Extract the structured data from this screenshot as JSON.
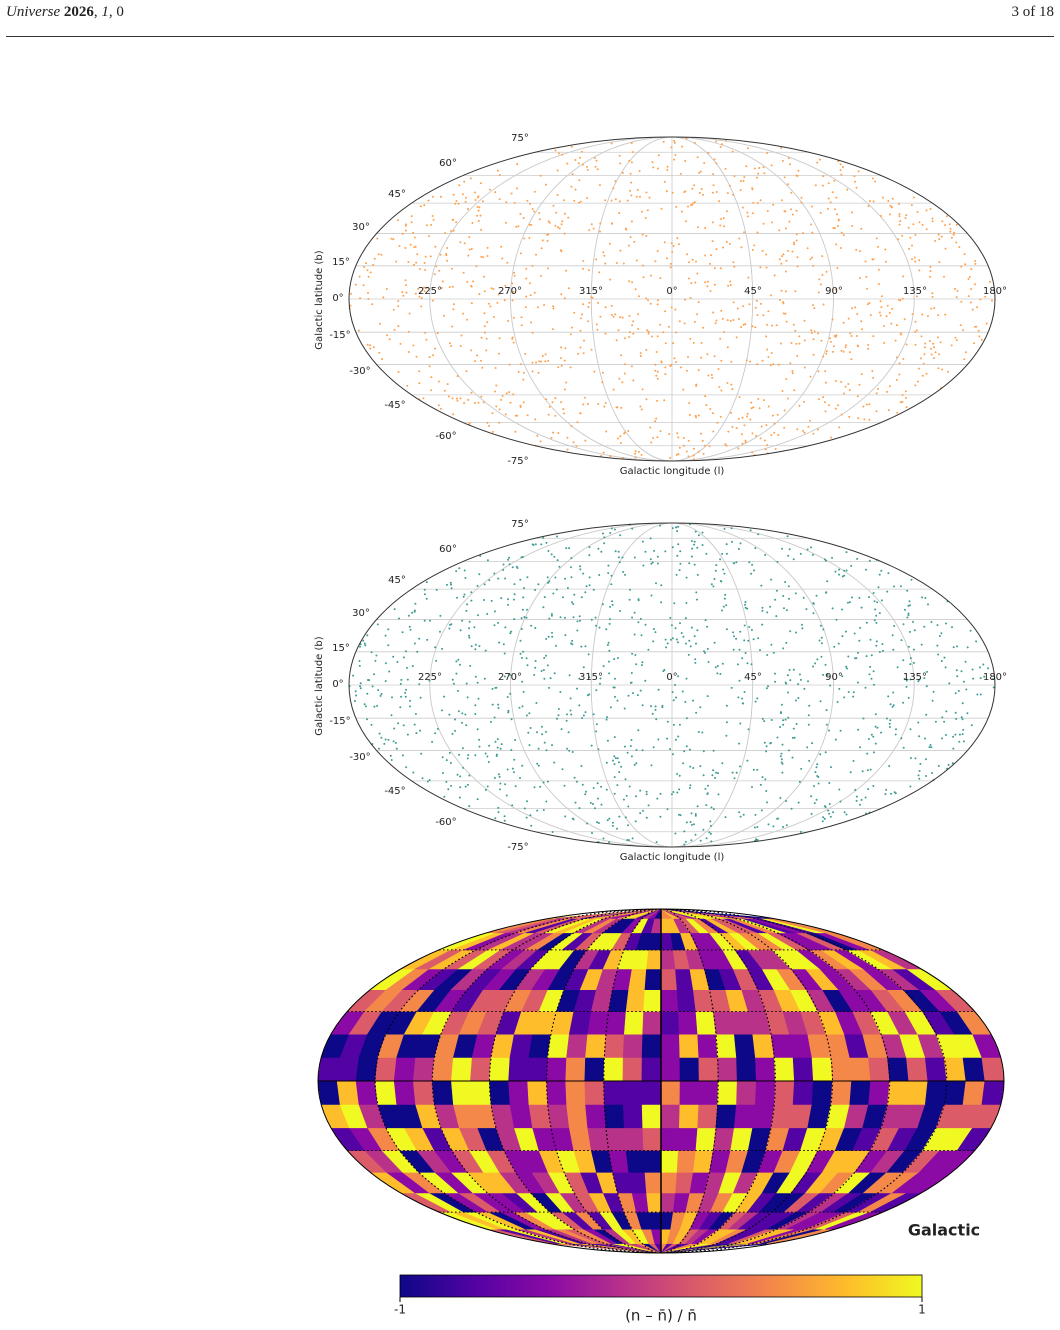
{
  "header": {
    "journal": "Universe",
    "year": "2026",
    "volume": "1",
    "article": "0",
    "page": "3 of 18"
  },
  "figures": [
    {
      "lat_labels": [
        "75°",
        "60°",
        "45°",
        "30°",
        "15°",
        "0°",
        "-15°",
        "-30°",
        "-45°",
        "-60°",
        "-75°"
      ],
      "lon_labels": [
        "225°",
        "270°",
        "315°",
        "0°",
        "45°",
        "90°",
        "135°",
        "180°"
      ],
      "xlabel": "Galactic longitude (l)",
      "ylabel": "Galactic latitude (b)",
      "color": "#ffa04d"
    },
    {
      "lat_labels": [
        "75°",
        "60°",
        "45°",
        "30°",
        "15°",
        "0°",
        "-15°",
        "-30°",
        "-45°",
        "-60°",
        "-75°"
      ],
      "lon_labels": [
        "225°",
        "270°",
        "315°",
        "0°",
        "45°",
        "90°",
        "135°",
        "180°"
      ],
      "xlabel": "Galactic longitude (l)",
      "ylabel": "Galactic latitude (b)",
      "color": "#3f9b93"
    }
  ],
  "map": {
    "label": "Galactic",
    "colorbar_min": "-1",
    "colorbar_max": "1",
    "colorbar_label": "(n – n̄) / n̄",
    "colormap": [
      "#0d0887",
      "#5302a3",
      "#8b0aa5",
      "#b83289",
      "#db5c68",
      "#f48849",
      "#febd2a",
      "#f0f921"
    ]
  }
}
